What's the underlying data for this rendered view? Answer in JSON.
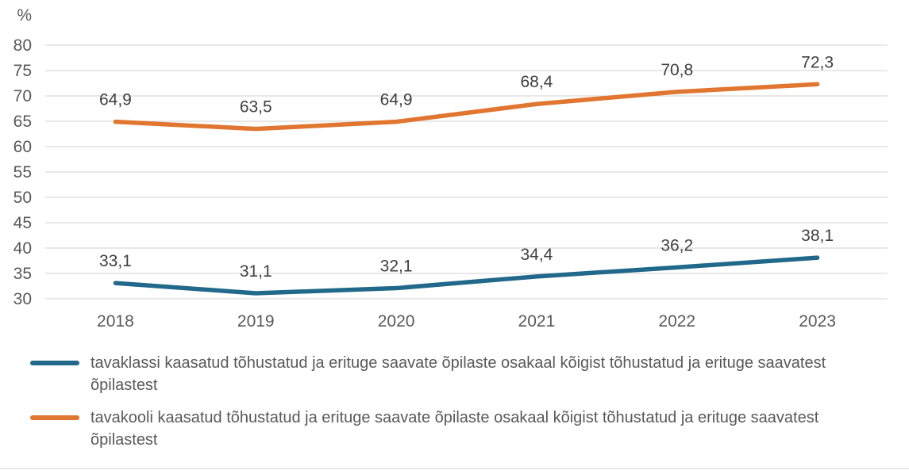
{
  "chart_data": {
    "type": "line",
    "title": "",
    "xlabel": "",
    "ylabel": "%",
    "y_axis": {
      "unit_label": "%",
      "min": 30,
      "max": 80,
      "step": 5
    },
    "categories": [
      "2018",
      "2019",
      "2020",
      "2021",
      "2022",
      "2023"
    ],
    "series": [
      {
        "name": "tavaklassi kaasatud tõhustatud ja erituge saavate õpilaste osakaal kõigist tõhustatud ja erituge saavatest õpilastest",
        "color": "#21698A",
        "values": [
          33.1,
          31.1,
          32.1,
          34.4,
          36.2,
          38.1
        ],
        "display_labels": [
          "33,1",
          "31,1",
          "32,1",
          "34,4",
          "36,2",
          "38,1"
        ]
      },
      {
        "name": "tavakooli kaasatud tõhustatud ja erituge saavate õpilaste osakaal kõigist tõhustatud ja erituge saavatest õpilastest",
        "color": "#E0762F",
        "values": [
          64.9,
          63.5,
          64.9,
          68.4,
          70.8,
          72.3
        ],
        "display_labels": [
          "64,9",
          "63,5",
          "64,9",
          "68,4",
          "70,8",
          "72,3"
        ]
      }
    ],
    "grid": true,
    "legend_position": "bottom",
    "colors": {
      "gridline": "#D9D9D9",
      "axis_text": "#595959",
      "data_label_text": "#404040",
      "legend_text": "#595959"
    }
  }
}
